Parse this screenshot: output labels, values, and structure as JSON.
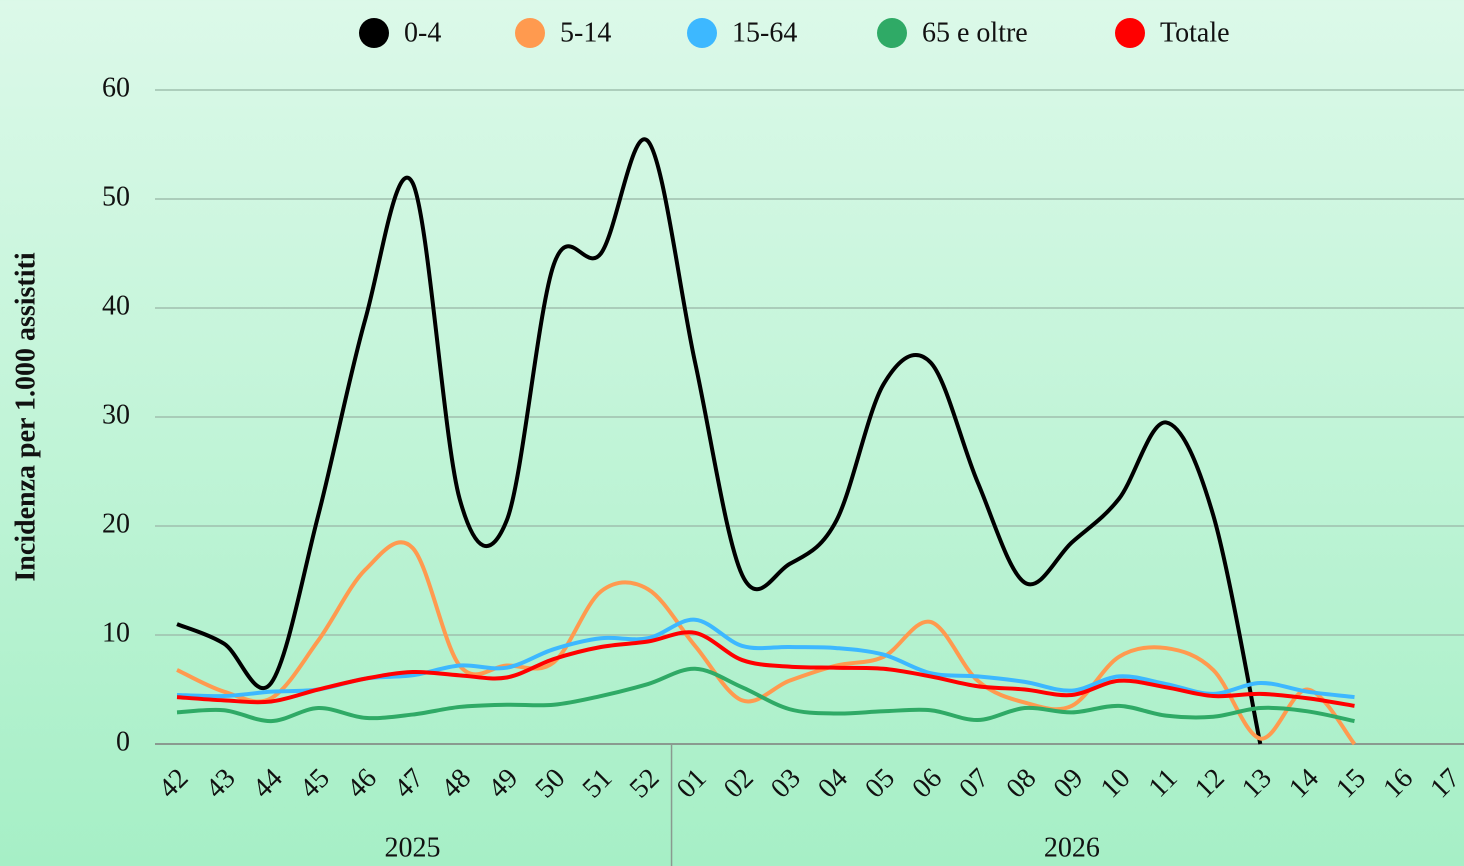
{
  "chart_data": {
    "type": "line",
    "y_label": "Incidenza per 1.000 assistiti",
    "categories": [
      "42",
      "43",
      "44",
      "45",
      "46",
      "47",
      "48",
      "49",
      "50",
      "51",
      "52",
      "01",
      "02",
      "03",
      "04",
      "05",
      "06",
      "07",
      "08",
      "09",
      "10",
      "11",
      "12",
      "13",
      "14",
      "15",
      "16",
      "17"
    ],
    "x_groups": [
      {
        "label": "2025",
        "start": 0,
        "end": 10
      },
      {
        "label": "2026",
        "start": 11,
        "end": 27
      }
    ],
    "series": [
      {
        "name": "0-4",
        "color": "#000000",
        "values": [
          11,
          9.2,
          5.6,
          21,
          39,
          51.5,
          22.5,
          20.5,
          44,
          45,
          55.3,
          35,
          15.5,
          16.5,
          20.5,
          33,
          35,
          24,
          14.8,
          18.5,
          22.5,
          29.5,
          21,
          0,
          null,
          null,
          null,
          null
        ]
      },
      {
        "name": "5-14",
        "color": "#ff9a4f",
        "values": [
          6.8,
          4.8,
          4.2,
          9.5,
          16,
          18,
          7.2,
          7.2,
          7.5,
          14,
          14.2,
          9,
          4,
          5.8,
          7.2,
          8,
          11.2,
          5.8,
          3.8,
          3.5,
          8,
          8.8,
          6.8,
          0.5,
          5,
          0,
          null,
          null
        ]
      },
      {
        "name": "15-64",
        "color": "#3db8ff",
        "values": [
          4.5,
          4.4,
          4.8,
          5,
          6,
          6.3,
          7.2,
          7,
          8.7,
          9.7,
          9.7,
          11.4,
          9,
          8.9,
          8.8,
          8.2,
          6.5,
          6.2,
          5.7,
          4.9,
          6.2,
          5.5,
          4.6,
          5.6,
          4.8,
          4.3,
          null,
          null
        ]
      },
      {
        "name": "65 e oltre",
        "color": "#2faa66",
        "values": [
          2.9,
          3.1,
          2.1,
          3.3,
          2.4,
          2.7,
          3.4,
          3.6,
          3.6,
          4.4,
          5.5,
          6.9,
          5.2,
          3.2,
          2.8,
          3.0,
          3.1,
          2.2,
          3.3,
          2.9,
          3.5,
          2.6,
          2.5,
          3.3,
          3.0,
          2.1,
          null,
          null
        ]
      },
      {
        "name": "Totale",
        "color": "#ff0000",
        "values": [
          4.3,
          4.0,
          3.9,
          5,
          6,
          6.6,
          6.3,
          6.1,
          7.8,
          8.9,
          9.4,
          10.2,
          7.7,
          7.1,
          7.0,
          6.9,
          6.2,
          5.3,
          5.0,
          4.5,
          5.8,
          5.2,
          4.4,
          4.6,
          4.2,
          3.5,
          null,
          null
        ]
      }
    ],
    "ylim": [
      0,
      60
    ],
    "yticks": [
      0,
      10,
      20,
      30,
      40,
      50,
      60
    ],
    "grid": true,
    "legend": "top"
  }
}
